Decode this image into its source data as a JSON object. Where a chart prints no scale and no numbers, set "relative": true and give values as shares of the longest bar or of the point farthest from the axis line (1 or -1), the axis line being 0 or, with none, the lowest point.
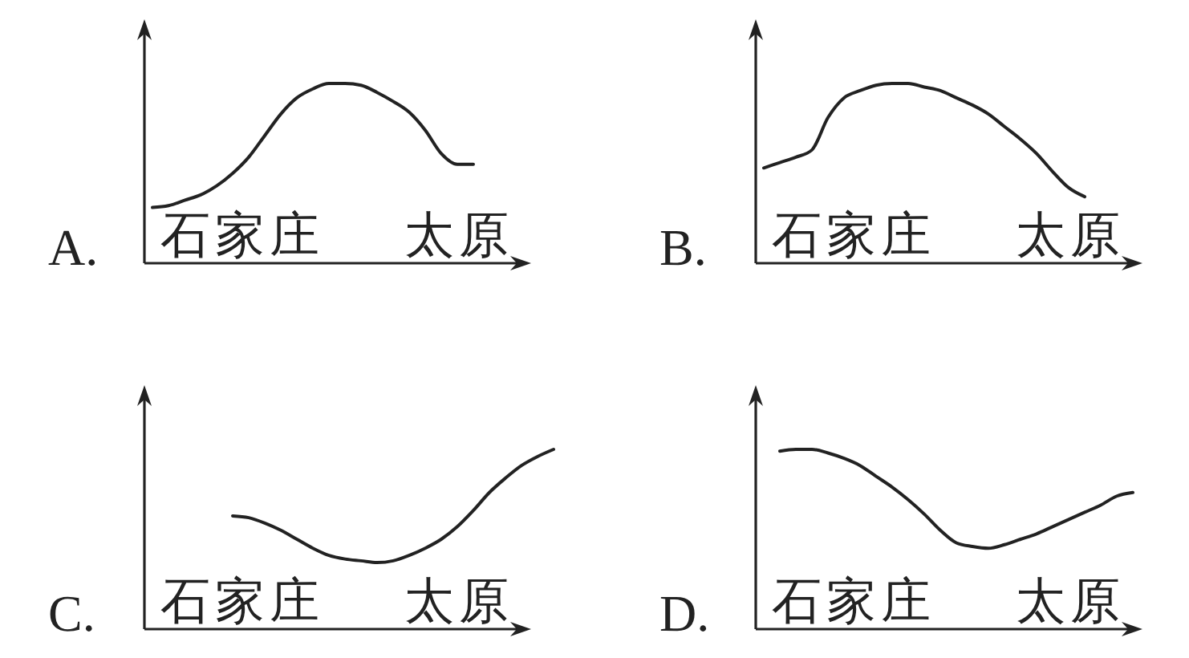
{
  "chart_data": [
    {
      "type": "line",
      "title": "A.",
      "annotations": [
        "石家庄",
        "太原"
      ],
      "relative": true,
      "categories": [
        null,
        null,
        null,
        null,
        null,
        null,
        null,
        null,
        null,
        null,
        null,
        null,
        null,
        null,
        null,
        null,
        null,
        null,
        null,
        null,
        null,
        null,
        null,
        null,
        null,
        null
      ],
      "values": [
        0.31,
        0.32,
        0.35,
        0.38,
        0.43,
        0.5,
        0.59,
        0.71,
        0.83,
        0.92,
        0.97,
        1,
        1,
        0.99,
        0.95,
        0.9,
        0.84,
        0.74,
        0.61,
        0.55,
        0.55,
        null,
        null,
        null,
        null,
        null
      ],
      "color": "#222222"
    },
    {
      "type": "line",
      "title": "B.",
      "annotations": [
        "石家庄",
        "太原"
      ],
      "relative": true,
      "categories": [
        null,
        null,
        null,
        null,
        null,
        null,
        null,
        null,
        null,
        null,
        null,
        null,
        null,
        null,
        null,
        null,
        null,
        null,
        null,
        null,
        null,
        null,
        null,
        null,
        null,
        null
      ],
      "values": [
        0.53,
        0.56,
        0.59,
        0.63,
        0.81,
        0.92,
        0.96,
        0.99,
        1,
        1,
        0.98,
        0.96,
        0.92,
        0.88,
        0.83,
        0.76,
        0.69,
        0.61,
        0.51,
        0.42,
        0.37,
        null,
        null,
        null,
        null,
        null
      ],
      "color": "#222222"
    },
    {
      "type": "line",
      "title": "C.",
      "annotations": [
        "石家庄",
        "太原"
      ],
      "relative": true,
      "categories": [
        null,
        null,
        null,
        null,
        null,
        null,
        null,
        null,
        null,
        null,
        null,
        null,
        null,
        null,
        null,
        null,
        null,
        null,
        null,
        null,
        null,
        null,
        null,
        null,
        null,
        null
      ],
      "values": [
        null,
        null,
        null,
        null,
        null,
        0.63,
        0.62,
        0.59,
        0.55,
        0.5,
        0.45,
        0.41,
        0.39,
        0.38,
        0.37,
        0.38,
        0.41,
        0.45,
        0.5,
        0.57,
        0.66,
        0.76,
        0.84,
        0.91,
        0.96,
        1
      ],
      "color": "#222222"
    },
    {
      "type": "line",
      "title": "D.",
      "annotations": [
        "石家庄",
        "太原"
      ],
      "relative": true,
      "categories": [
        null,
        null,
        null,
        null,
        null,
        null,
        null,
        null,
        null,
        null,
        null,
        null,
        null,
        null,
        null,
        null,
        null,
        null,
        null,
        null,
        null,
        null,
        null,
        null,
        null,
        null
      ],
      "values": [
        null,
        0.99,
        1,
        1,
        0.98,
        0.95,
        0.91,
        0.85,
        0.79,
        0.72,
        0.64,
        0.55,
        0.48,
        0.46,
        0.45,
        0.47,
        0.5,
        0.53,
        0.57,
        0.61,
        0.65,
        0.69,
        0.74,
        0.76,
        null,
        null
      ],
      "color": "#222222"
    }
  ]
}
